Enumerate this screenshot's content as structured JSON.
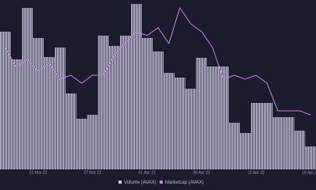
{
  "chart_data": {
    "type": "bar-line",
    "categories": [
      null,
      null,
      null,
      "22 Mar 22",
      null,
      null,
      null,
      null,
      "27 Mar 22",
      null,
      null,
      null,
      null,
      "01 Apr 22",
      null,
      null,
      null,
      null,
      "06 Apr 22",
      null,
      null,
      null,
      null,
      "11 Apr 22",
      null,
      null,
      null,
      null,
      "16 Apr 22"
    ],
    "series": [
      {
        "name": "Volume (AVAX)",
        "type": "bar",
        "color": "#c8c7dc",
        "values": [
          174,
          139,
          204,
          166,
          142,
          154,
          96,
          64,
          69,
          169,
          156,
          169,
          209,
          166,
          149,
          122,
          116,
          102,
          141,
          130,
          130,
          59,
          46,
          84,
          84,
          66,
          66,
          49,
          29
        ]
      },
      {
        "name": "Marketcap (AVAX)",
        "type": "line",
        "color": "#c77dee",
        "values": [
          154,
          129,
          139,
          124,
          134,
          114,
          119,
          109,
          119,
          119,
          144,
          159,
          174,
          169,
          179,
          159,
          204,
          184,
          174,
          154,
          114,
          119,
          114,
          119,
          109,
          74,
          74,
          74,
          69
        ]
      }
    ],
    "ylim": [
      0,
      214
    ]
  }
}
